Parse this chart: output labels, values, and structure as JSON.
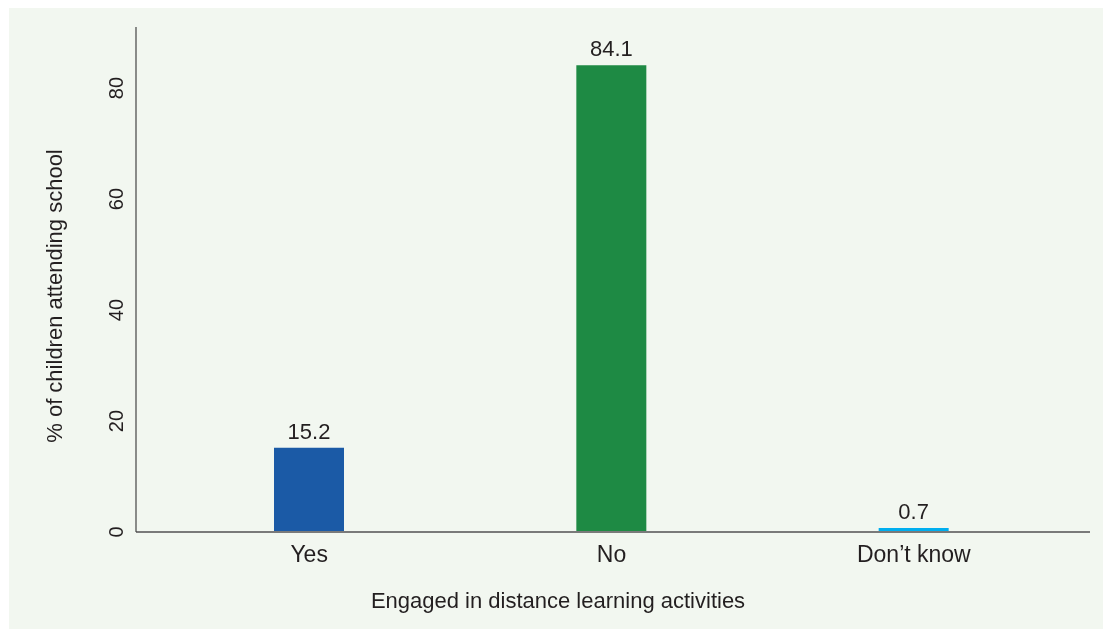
{
  "chart_data": {
    "type": "bar",
    "xlabel": "Engaged in distance learning activities",
    "ylabel": "% of children attending school",
    "categories": [
      "Yes",
      "No",
      "Don’t know"
    ],
    "values": [
      15.2,
      84.1,
      0.7
    ],
    "colors": [
      "#1b5aa6",
      "#1e8a44",
      "#00aeef"
    ],
    "ylim": [
      0,
      91
    ],
    "yticks": [
      0,
      20,
      40,
      60,
      80
    ],
    "data_labels": true
  }
}
